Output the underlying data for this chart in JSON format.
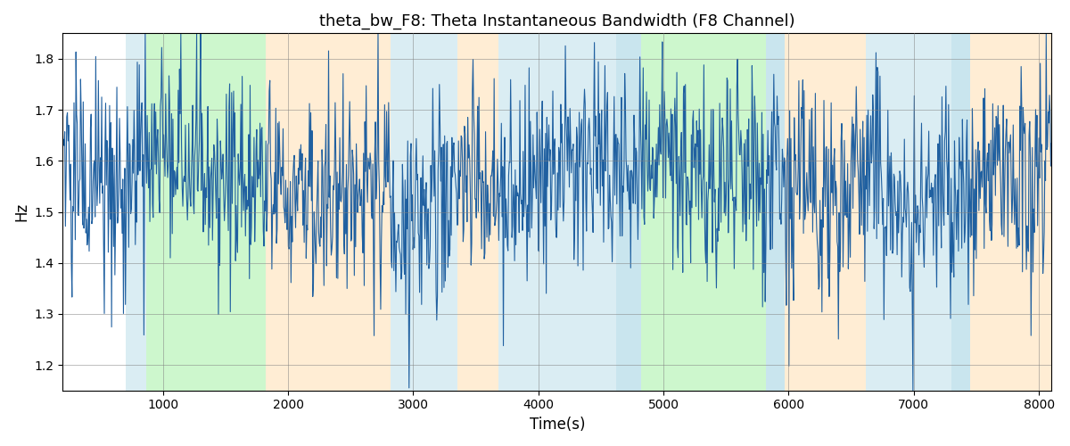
{
  "title": "theta_bw_F8: Theta Instantaneous Bandwidth (F8 Channel)",
  "xlabel": "Time(s)",
  "ylabel": "Hz",
  "xlim": [
    200,
    8100
  ],
  "ylim": [
    1.15,
    1.85
  ],
  "yticks": [
    1.2,
    1.3,
    1.4,
    1.5,
    1.6,
    1.7,
    1.8
  ],
  "xticks": [
    1000,
    2000,
    3000,
    4000,
    5000,
    6000,
    7000,
    8000
  ],
  "line_color": "#2060a0",
  "bg_color": "#ffffff",
  "bands": [
    {
      "xmin": 700,
      "xmax": 870,
      "color": "#add8e6",
      "alpha": 0.45
    },
    {
      "xmin": 870,
      "xmax": 1820,
      "color": "#90ee90",
      "alpha": 0.45
    },
    {
      "xmin": 1820,
      "xmax": 2820,
      "color": "#ffd9a0",
      "alpha": 0.45
    },
    {
      "xmin": 2820,
      "xmax": 3350,
      "color": "#add8e6",
      "alpha": 0.45
    },
    {
      "xmin": 3350,
      "xmax": 3680,
      "color": "#ffd9a0",
      "alpha": 0.45
    },
    {
      "xmin": 3680,
      "xmax": 4620,
      "color": "#add8e6",
      "alpha": 0.45
    },
    {
      "xmin": 4620,
      "xmax": 4820,
      "color": "#add8e6",
      "alpha": 0.65
    },
    {
      "xmin": 4820,
      "xmax": 5820,
      "color": "#90ee90",
      "alpha": 0.45
    },
    {
      "xmin": 5820,
      "xmax": 5970,
      "color": "#add8e6",
      "alpha": 0.65
    },
    {
      "xmin": 5970,
      "xmax": 6620,
      "color": "#ffd9a0",
      "alpha": 0.45
    },
    {
      "xmin": 6620,
      "xmax": 7300,
      "color": "#add8e6",
      "alpha": 0.45
    },
    {
      "xmin": 7300,
      "xmax": 7450,
      "color": "#add8e6",
      "alpha": 0.65
    },
    {
      "xmin": 7450,
      "xmax": 8100,
      "color": "#ffd9a0",
      "alpha": 0.45
    }
  ],
  "seed": 42,
  "n_points": 1500,
  "x_start": 200,
  "x_end": 8100
}
